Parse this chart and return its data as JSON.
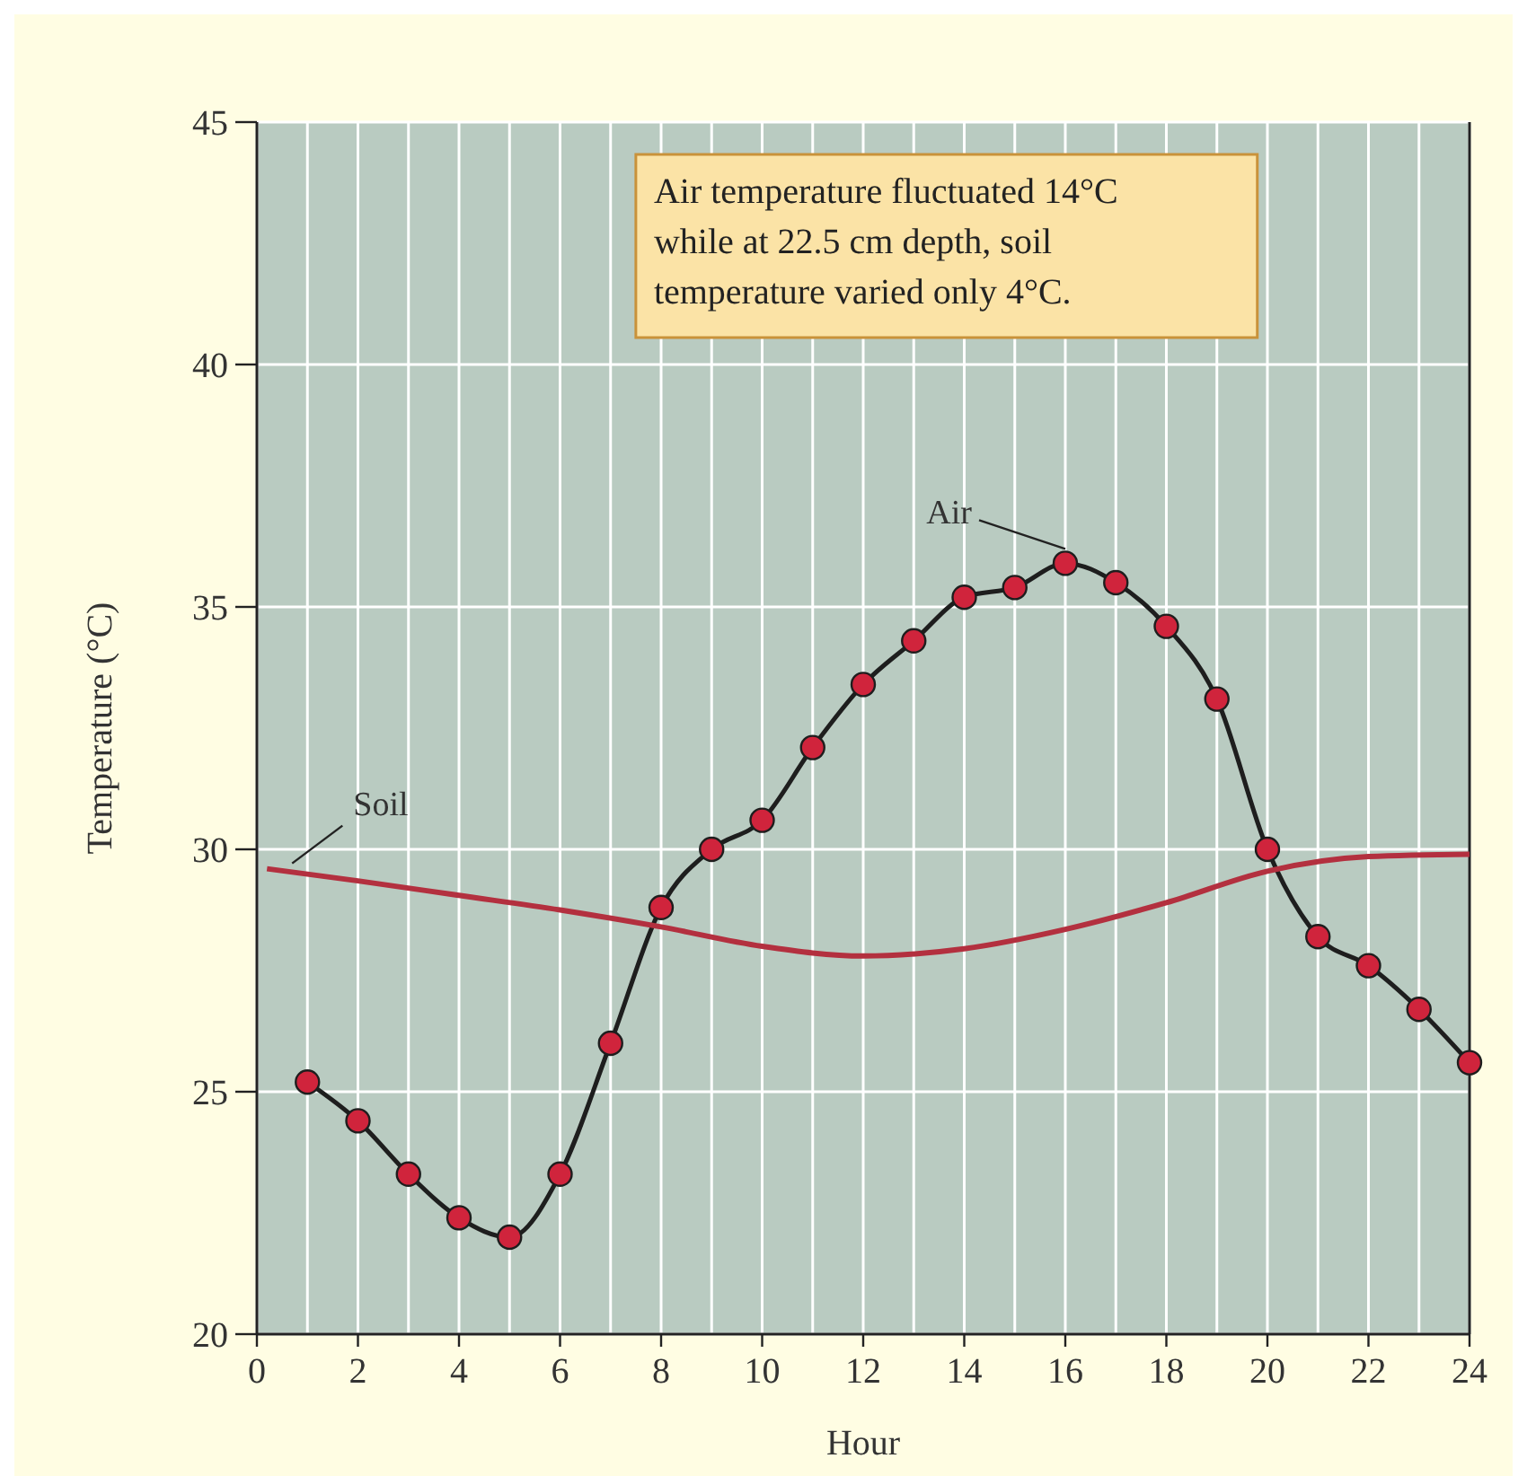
{
  "chart_data": {
    "type": "line",
    "xlabel": "Hour",
    "ylabel": "Temperature (°C)",
    "xlim": [
      0,
      24
    ],
    "ylim": [
      20,
      45
    ],
    "xticks": [
      0,
      {
        "value": 1,
        "label": null
      },
      2,
      {
        "value": 3,
        "label": null
      },
      4,
      {
        "value": 5,
        "label": null
      },
      6,
      {
        "value": 7,
        "label": null
      },
      8,
      {
        "value": 9,
        "label": null
      },
      10,
      {
        "value": 11,
        "label": null
      },
      12,
      {
        "value": 13,
        "label": null
      },
      14,
      {
        "value": 15,
        "label": null
      },
      16,
      {
        "value": 17,
        "label": null
      },
      18,
      {
        "value": 19,
        "label": null
      },
      20,
      {
        "value": 21,
        "label": null
      },
      22,
      {
        "value": 23,
        "label": null
      },
      24
    ],
    "yticks": [
      20,
      25,
      30,
      35,
      40,
      45
    ],
    "grid": true,
    "series": [
      {
        "name": "Air",
        "color": "#1e1e1e",
        "marker": "circle",
        "colors": [
          "#d0243c",
          "#d0243c",
          "#d0243c",
          "#d0243c",
          "#d0243c",
          "#d0243c",
          "#d0243c",
          "#d0243c",
          "#d0243c",
          "#d0243c",
          "#d0243c",
          "#d0243c",
          "#d0243c",
          "#d0243c",
          "#d0243c",
          "#d0243c",
          "#d0243c",
          "#d0243c",
          "#d0243c",
          "#d0243c",
          "#d0243c",
          "#d0243c",
          "#d0243c",
          "#d0243c"
        ],
        "x": [
          1,
          2,
          3,
          4,
          5,
          6,
          7,
          8,
          9,
          10,
          11,
          12,
          13,
          14,
          15,
          16,
          17,
          18,
          19,
          20,
          21,
          22,
          23,
          24
        ],
        "values": [
          25.2,
          24.4,
          23.3,
          22.4,
          22.0,
          23.3,
          26.0,
          28.8,
          30.0,
          30.6,
          32.1,
          33.4,
          34.3,
          35.2,
          35.4,
          35.9,
          35.5,
          34.6,
          33.1,
          30.0,
          28.2,
          27.6,
          26.7,
          25.6
        ]
      },
      {
        "name": "Soil",
        "color": "#b3303f",
        "marker": "none",
        "x": [
          0.2,
          2,
          4,
          6,
          8,
          10,
          12,
          14,
          16,
          18,
          20,
          22,
          24
        ],
        "values": [
          29.6,
          29.35,
          29.05,
          28.75,
          28.4,
          28.0,
          27.8,
          27.95,
          28.35,
          28.9,
          29.55,
          29.85,
          29.9
        ]
      }
    ],
    "annotations": [
      "Air temperature fluctuated 14°C while at 22.5 cm depth, soil temperature varied only 4°C."
    ]
  }
}
